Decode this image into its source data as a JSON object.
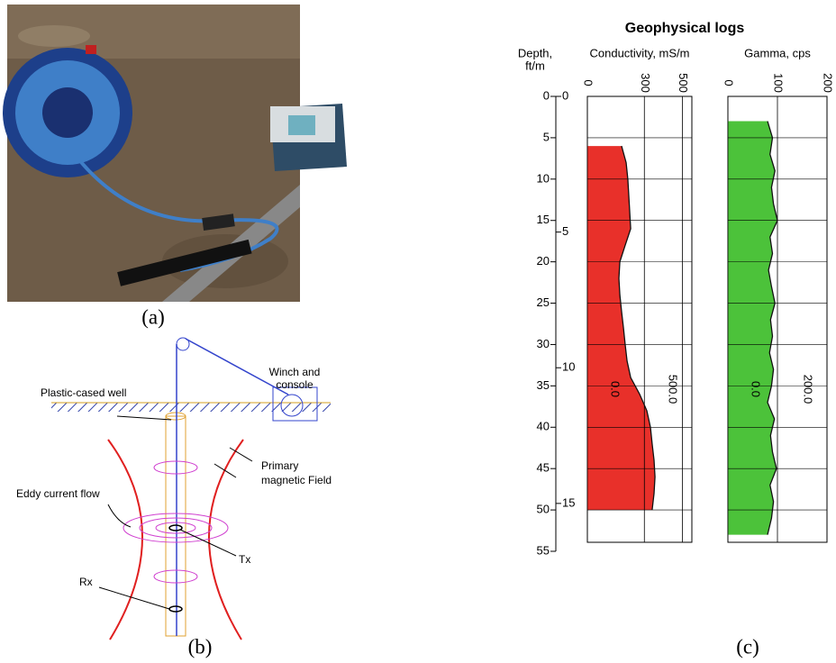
{
  "figure": {
    "panel_a": {
      "label": "(a)"
    },
    "panel_b": {
      "label": "(b)",
      "winch_line1": "Winch and",
      "winch_line2": "console",
      "well": "Plastic-cased well",
      "field_line1": "Primary",
      "field_line2": "magnetic Field",
      "eddy": "Eddy current flow",
      "tx": "Tx",
      "rx": "Rx"
    }
  },
  "chart_data": {
    "type": "well-log",
    "title": "Geophysical logs",
    "label": "(c)",
    "depth_label": "Depth,",
    "depth_units": "ft/m",
    "ylim": [
      0,
      55
    ],
    "yticks": [
      0,
      5,
      10,
      15,
      20,
      25,
      30,
      35,
      40,
      45,
      50,
      55
    ],
    "m_ticks": [
      0,
      5,
      10,
      15
    ],
    "tracks": [
      {
        "name": "Conductivity, mS/m",
        "color": "#e8302a",
        "xlim": [
          0,
          550
        ],
        "xticks": [
          0,
          300,
          500
        ],
        "scale_labels": [
          "0.0",
          "500.0"
        ],
        "x": [
          6,
          8,
          10,
          12,
          14,
          16,
          18,
          20,
          22,
          24,
          26,
          28,
          30,
          32,
          34,
          36,
          38,
          40,
          42,
          44,
          46,
          48,
          50
        ],
        "values": [
          180,
          204,
          213,
          218,
          223,
          228,
          199,
          171,
          166,
          171,
          180,
          190,
          199,
          209,
          228,
          275,
          313,
          332,
          341,
          351,
          356,
          351,
          341
        ]
      },
      {
        "name": "Gamma, cps",
        "color": "#4cc23a",
        "xlim": [
          0,
          200
        ],
        "xticks": [
          0,
          100,
          200
        ],
        "scale_labels": [
          "0.0",
          "200.0"
        ],
        "x": [
          3,
          5,
          7,
          9,
          11,
          13,
          15,
          17,
          19,
          21,
          23,
          25,
          27,
          29,
          31,
          33,
          35,
          37,
          39,
          41,
          43,
          45,
          47,
          49,
          51,
          53
        ],
        "values": [
          80,
          90,
          85,
          95,
          88,
          92,
          100,
          85,
          90,
          82,
          88,
          95,
          86,
          90,
          84,
          92,
          88,
          80,
          94,
          86,
          90,
          98,
          85,
          92,
          88,
          80
        ]
      }
    ]
  }
}
